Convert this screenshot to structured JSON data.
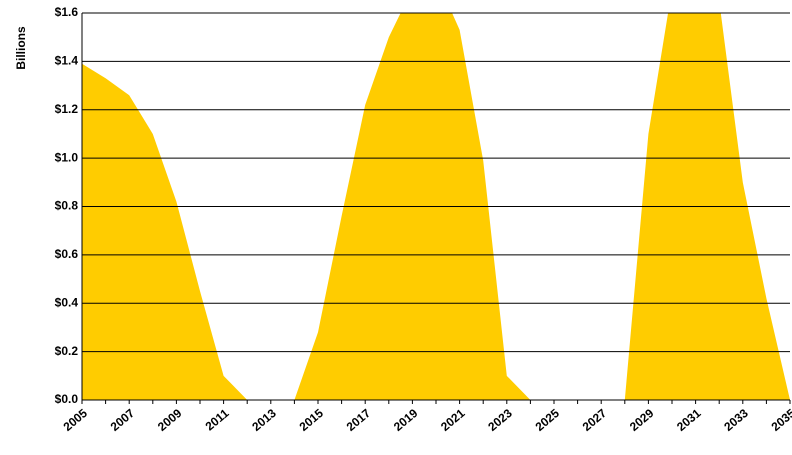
{
  "chart_data": {
    "type": "area",
    "y_label": "Billions",
    "categories": [
      "2005",
      null,
      "2007",
      null,
      "2009",
      null,
      "2011",
      null,
      "2013",
      null,
      "2015",
      null,
      "2017",
      null,
      "2019",
      null,
      "2021",
      null,
      "2023",
      null,
      "2025",
      null,
      "2027",
      null,
      "2029",
      null,
      "2031",
      null,
      "2033",
      null,
      "2035"
    ],
    "values": [
      1.39,
      1.33,
      1.26,
      1.1,
      0.82,
      0.45,
      0.1,
      0,
      0,
      0,
      0.28,
      0.76,
      1.22,
      1.5,
      1.7,
      1.75,
      1.53,
      0.99,
      0.1,
      0,
      0,
      0,
      0,
      0,
      1.1,
      1.7,
      1.8,
      1.65,
      0.9,
      0.42,
      0
    ],
    "color": "#ffcc00",
    "ylim": [
      0,
      1.6
    ],
    "yticks": [
      {
        "value": 0,
        "label": "$0.0"
      },
      {
        "value": 0.2,
        "label": "$0.2"
      },
      {
        "value": 0.4,
        "label": "$0.4"
      },
      {
        "value": 0.6,
        "label": "$0.6"
      },
      {
        "value": 0.8,
        "label": "$0.8"
      },
      {
        "value": 1.0,
        "label": "$1.0"
      },
      {
        "value": 1.2,
        "label": "$1.2"
      },
      {
        "value": 1.4,
        "label": "$1.4"
      },
      {
        "value": 1.6,
        "label": "$1.6"
      }
    ],
    "grid": true
  }
}
